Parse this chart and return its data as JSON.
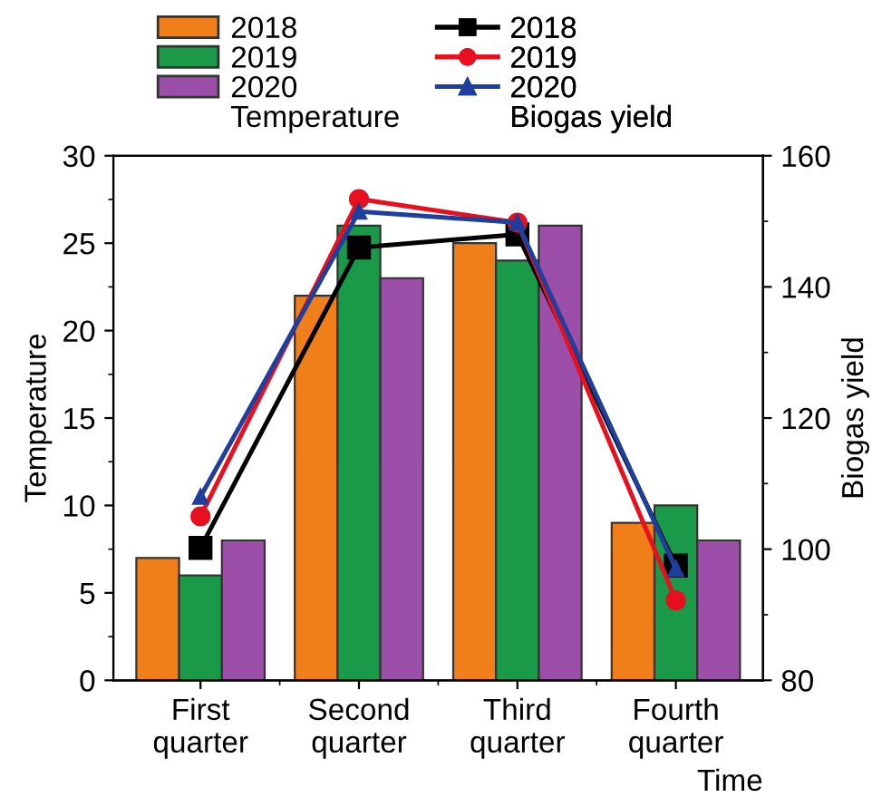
{
  "chart_data": {
    "type": "bar",
    "xlabel": "Time",
    "ylabel": "Temperature",
    "y2label": "Biogas yield",
    "legend_title": [
      "Temperature",
      "Biogas yield"
    ],
    "categories": [
      "First\nquarter",
      "Second\nquarter",
      "Third\nquarter",
      "Fourth\nquarter"
    ],
    "series": [
      {
        "name": "2018",
        "color": "#f07f1a",
        "values": [
          7,
          22,
          25,
          9
        ]
      },
      {
        "name": "2019",
        "color": "#1a9a48",
        "values": [
          6,
          26,
          24,
          10
        ]
      },
      {
        "name": "2020",
        "color": "#9b4fa8",
        "values": [
          8,
          23,
          26,
          8
        ]
      },
      {
        "name": "2018",
        "type": "line",
        "axis": "y2",
        "marker": "square",
        "color": "#000000",
        "values": [
          100.2,
          146,
          148,
          97.5
        ]
      },
      {
        "name": "2019",
        "type": "line",
        "axis": "y2",
        "marker": "circle",
        "color": "#e8101e",
        "values": [
          105,
          153.4,
          149.8,
          92.2
        ]
      },
      {
        "name": "2020",
        "type": "line",
        "axis": "y2",
        "marker": "triangle",
        "color": "#1f3f9f",
        "values": [
          108,
          151.5,
          149.8,
          97
        ]
      }
    ],
    "ylim": [
      0,
      30
    ],
    "yticks": [
      0,
      5,
      10,
      15,
      20,
      25,
      30
    ],
    "y2lim": [
      80,
      160
    ],
    "y2ticks": [
      80,
      100,
      120,
      140,
      160
    ],
    "legend": "top",
    "grid": false
  }
}
